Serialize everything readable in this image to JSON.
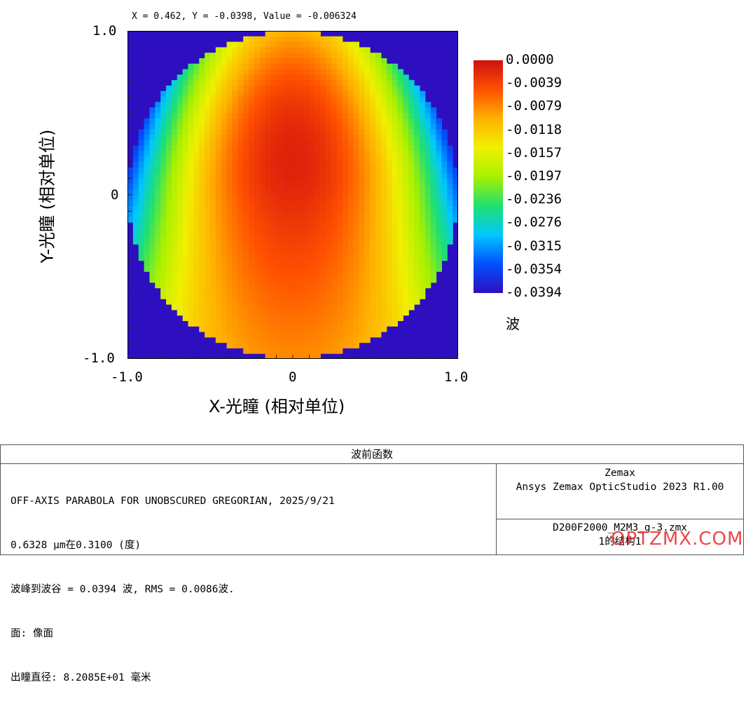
{
  "cursor_readout": "X = 0.462, Y = -0.0398, Value = -0.006324",
  "chart_data": {
    "type": "heatmap",
    "xlabel": "X-光瞳 (相对单位)",
    "ylabel": "Y-光瞳 (相对单位)",
    "xlim": [
      -1.0,
      1.0
    ],
    "ylim": [
      -1.0,
      1.0
    ],
    "x_ticks": [
      "-1.0",
      "0",
      "1.0"
    ],
    "y_ticks": [
      "1.0",
      "0",
      "-1.0"
    ],
    "value_range": [
      -0.0394,
      0.0
    ],
    "colorbar_labels": [
      "0.0000",
      "-0.0039",
      "-0.0079",
      "-0.0118",
      "-0.0157",
      "-0.0197",
      "-0.0236",
      "-0.0276",
      "-0.0315",
      "-0.0354",
      "-0.0394"
    ],
    "colorbar_unit": "波",
    "colorscale": [
      "#2d0fbf",
      "#0050ff",
      "#00c8ff",
      "#20e070",
      "#a8f000",
      "#f0f000",
      "#ffb000",
      "#ff5000",
      "#d01010"
    ],
    "background_color": "#2d0fbf",
    "pupil_shape": "circle"
  },
  "info": {
    "title": "波前函数",
    "lines": [
      "OFF-AXIS PARABOLA FOR UNOBSCURED GREGORIAN, 2025/9/21",
      "0.6328 µm在0.3100 (度)",
      "波峰到波谷 = 0.0394 波, RMS = 0.0086波.",
      "面: 像面",
      "出瞳直径: 8.2085E+01 毫米"
    ],
    "right_top": [
      "Zemax",
      "Ansys Zemax OpticStudio 2023 R1.00"
    ],
    "right_bottom": [
      "D200F2000_M2M3_g-3.zmx",
      "1的结构1"
    ]
  },
  "watermark": "OPTZMX.COM"
}
